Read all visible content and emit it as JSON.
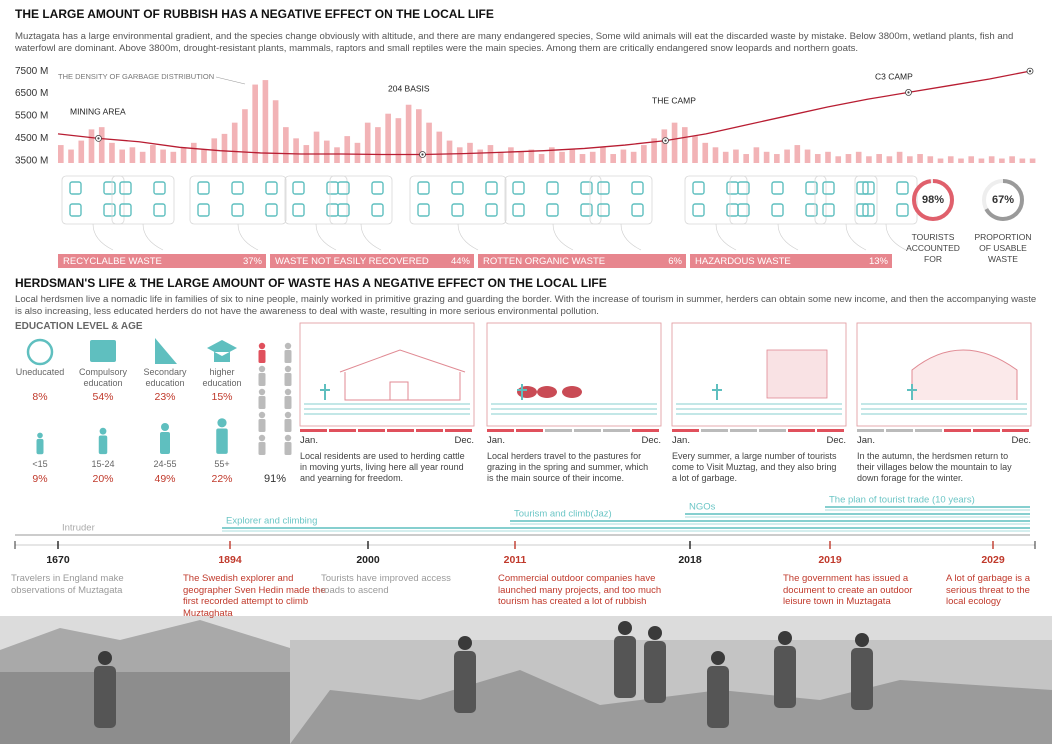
{
  "title1": "THE LARGE AMOUNT OF RUBBISH HAS A NEGATIVE EFFECT ON THE LOCAL LIFE",
  "intro1": "Muztagata has a large environmental gradient, and the species change obviously with altitude, and there are many endangered species, Some wild animals will eat the discarded waste by mistake. Below 3800m, wetland plants, fish and waterfowl are dominant. Above 3800m, drought-resistant plants, mammals, raptors and small reptiles were the main species. Among them are critically endangered snow leopards and northern goats.",
  "chart_data": {
    "type": "line",
    "ylim": [
      3400,
      7550
    ],
    "yticks": [
      {
        "value": 7500,
        "label": "7500 M"
      },
      {
        "value": 6500,
        "label": "6500 M"
      },
      {
        "value": 5500,
        "label": "5500 M"
      },
      {
        "value": 4500,
        "label": "4500 M"
      },
      {
        "value": 3500,
        "label": "3500 M"
      }
    ],
    "grid": false,
    "line": {
      "color": "#b81d32",
      "values": [
        4700,
        4500,
        4350,
        4100,
        3950,
        3850,
        3800,
        3800,
        3780,
        3780,
        3820,
        3880,
        3950,
        4050,
        4200,
        4400,
        4700,
        5100,
        5500,
        5900,
        6250,
        6550,
        6850,
        7150,
        7500
      ]
    },
    "bars": {
      "color": "#f2b3b6",
      "values": [
        4200,
        4000,
        4400,
        4900,
        5000,
        4300,
        4000,
        4100,
        3900,
        4200,
        4000,
        3900,
        4100,
        4300,
        4000,
        4500,
        4700,
        5200,
        5800,
        6900,
        7100,
        6200,
        5000,
        4500,
        4200,
        4800,
        4400,
        4100,
        4600,
        4300,
        5200,
        5000,
        5600,
        5400,
        6000,
        5800,
        5200,
        4800,
        4400,
        4100,
        4300,
        4000,
        4200,
        3900,
        4100,
        3900,
        4000,
        3800,
        4100,
        3900,
        4000,
        3800,
        3900,
        4100,
        3800,
        4000,
        3900,
        4200,
        4500,
        4900,
        5200,
        5000,
        4600,
        4300,
        4100,
        3900,
        4000,
        3800,
        4100,
        3900,
        3800,
        4000,
        4200,
        4000,
        3800,
        3900,
        3700,
        3800,
        3900,
        3700,
        3800,
        3700,
        3900,
        3700,
        3800,
        3700,
        3600,
        3700,
        3600,
        3700,
        3600,
        3700,
        3600,
        3700,
        3600,
        3600
      ]
    },
    "annotations": [
      "THE DENSITY OF GARBAGE DISTRIBUTION",
      "MINING AREA",
      "204 BASIS",
      "THE CAMP",
      "C3 CAMP"
    ]
  },
  "waste": [
    {
      "name": "RECYCLALBE WASTE",
      "share": "37%"
    },
    {
      "name": "WASTE NOT EASILY RECOVERED",
      "share": "44%"
    },
    {
      "name": "ROTTEN ORGANIC WASTE",
      "share": "6%"
    },
    {
      "name": "HAZARDOUS WASTE",
      "share": "13%"
    }
  ],
  "rings": [
    {
      "value": 98,
      "label": "98%",
      "caption": "TOURISTS ACCOUNTED FOR",
      "color": "#e0606c"
    },
    {
      "value": 67,
      "label": "67%",
      "caption": "PROPORTION OF USABLE WASTE",
      "color": "#9a9a9a"
    }
  ],
  "title2": "HERDSMAN'S LIFE & THE LARGE AMOUNT OF WASTE HAS A NEGATIVE EFFECT ON THE LOCAL LIFE",
  "intro2": "Local herdsmen live a nomadic life in families of six to nine people, mainly worked in primitive grazing and guarding the border. With the increase of tourism in summer, herders can obtain some new income, and then the accompanying waste is also increasing, less educated herders do not have the awareness to deal with waste, resulting in more serious environmental pollution.",
  "education_title": "EDUCATION LEVEL & AGE",
  "education": [
    {
      "label": "Uneducated",
      "share": "8%"
    },
    {
      "label": "Compulsory education",
      "share": "54%"
    },
    {
      "label": "Secondary education",
      "share": "23%"
    },
    {
      "label": "higher education",
      "share": "15%"
    }
  ],
  "age": [
    {
      "label": "<15",
      "share": "9%"
    },
    {
      "label": "15-24",
      "share": "20%"
    },
    {
      "label": "24-55",
      "share": "49%"
    },
    {
      "label": "55+",
      "share": "22%"
    }
  ],
  "herdsmen_share": "91%",
  "panels": [
    {
      "start": "Jan.",
      "end": "Dec.",
      "caption": "Local residents are used to herding cattle in moving yurts, living here all year round and yearning for freedom."
    },
    {
      "start": "Jan.",
      "end": "Dec.",
      "caption": "Local herders travel to the pastures for grazing in the spring and summer, which is the main source of their income."
    },
    {
      "start": "Jan.",
      "end": "Dec.",
      "caption": "Every summer, a large number of tourists come to Visit Muztag, and they also bring a lot of garbage."
    },
    {
      "start": "Jan.",
      "end": "Dec.",
      "caption": "In the autumn, the herdsmen return to their villages below the mountain to lay down forage for the winter."
    }
  ],
  "streams": [
    "Intruder",
    "Explorer and climbing",
    "Tourism and climb(Jaz)",
    "NGOs",
    "The plan of tourist trade (10 years)"
  ],
  "timeline": [
    {
      "year": "1670",
      "color": "#222222",
      "caption": "Travelers in England make observations of Muztagata",
      "caption_color": "#9a9a9a"
    },
    {
      "year": "1894",
      "color": "#c0392b",
      "caption": "The Swedish explorer and geographer Sven Hedin made the first recorded attempt to climb Muztaghata",
      "caption_color": "#c0392b"
    },
    {
      "year": "2000",
      "color": "#222222",
      "caption": "Tourists have improved access roads to ascend",
      "caption_color": "#9a9a9a"
    },
    {
      "year": "2011",
      "color": "#c0392b",
      "caption": "Commercial outdoor companies have launched many projects, and too much tourism has created a lot of rubbish",
      "caption_color": "#c0392b"
    },
    {
      "year": "2018",
      "color": "#222222"
    },
    {
      "year": "2019",
      "color": "#c0392b",
      "caption": "The government has issued a document to create an outdoor leisure town in Muztagata",
      "caption_color": "#c0392b"
    },
    {
      "year": "2029",
      "color": "#c0392b",
      "caption": "A lot of garbage is a serious threat to the local ecology",
      "caption_color": "#c0392b"
    }
  ]
}
